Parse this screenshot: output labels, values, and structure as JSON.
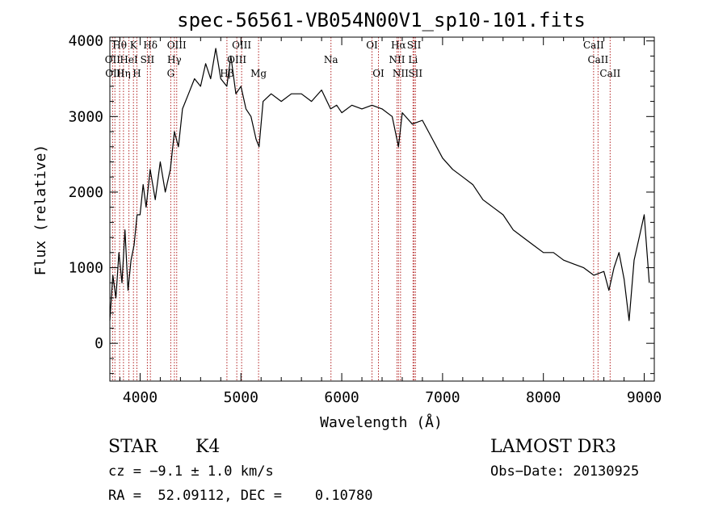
{
  "chart_data": {
    "type": "line",
    "title": "spec-56561-VB054N00V1_sp10-101.fits",
    "xlabel": "Wavelength (Å)",
    "ylabel": "Flux (relative)",
    "xlim": [
      3700,
      9100
    ],
    "ylim": [
      -500,
      4050
    ],
    "xticks": [
      {
        "value": 4000,
        "label": "4000"
      },
      {
        "value": 5000,
        "label": "5000"
      },
      {
        "value": 6000,
        "label": "6000"
      },
      {
        "value": 7000,
        "label": "7000"
      },
      {
        "value": 8000,
        "label": "8000"
      },
      {
        "value": 9000,
        "label": "9000"
      }
    ],
    "yticks": [
      {
        "value": 0,
        "label": "0"
      },
      {
        "value": 1000,
        "label": "1000"
      },
      {
        "value": 2000,
        "label": "2000"
      },
      {
        "value": 3000,
        "label": "3000"
      },
      {
        "value": 4000,
        "label": "4000"
      }
    ],
    "spectrum": {
      "name": "flux",
      "x": [
        3700,
        3730,
        3760,
        3790,
        3820,
        3850,
        3880,
        3910,
        3940,
        3970,
        4000,
        4030,
        4060,
        4100,
        4150,
        4200,
        4250,
        4300,
        4340,
        4380,
        4420,
        4480,
        4540,
        4600,
        4650,
        4700,
        4750,
        4800,
        4860,
        4900,
        4950,
        5000,
        5050,
        5100,
        5150,
        5180,
        5220,
        5300,
        5400,
        5500,
        5600,
        5700,
        5800,
        5890,
        5950,
        6000,
        6100,
        6200,
        6300,
        6400,
        6500,
        6563,
        6600,
        6700,
        6800,
        6900,
        7000,
        7100,
        7200,
        7300,
        7400,
        7500,
        7600,
        7700,
        7800,
        7900,
        8000,
        8100,
        8200,
        8300,
        8400,
        8500,
        8600,
        8650,
        8700,
        8750,
        8800,
        8850,
        8900,
        8950,
        9000,
        9050
      ],
      "y": [
        300,
        900,
        600,
        1200,
        800,
        1500,
        700,
        1100,
        1300,
        1700,
        1700,
        2100,
        1800,
        2300,
        1900,
        2400,
        2000,
        2300,
        2800,
        2600,
        3100,
        3300,
        3500,
        3400,
        3700,
        3500,
        3900,
        3500,
        3400,
        3800,
        3300,
        3400,
        3100,
        3000,
        2700,
        2600,
        3200,
        3300,
        3200,
        3300,
        3300,
        3200,
        3350,
        3100,
        3150,
        3050,
        3150,
        3100,
        3150,
        3100,
        3000,
        2600,
        3050,
        2900,
        2950,
        2700,
        2450,
        2300,
        2200,
        2100,
        1900,
        1800,
        1700,
        1500,
        1400,
        1300,
        1200,
        1200,
        1100,
        1050,
        1000,
        900,
        950,
        700,
        1000,
        1200,
        850,
        300,
        1100,
        1400,
        1700,
        800
      ]
    },
    "lines": [
      {
        "label": "Hθ",
        "wavelength": 3797,
        "row": 0
      },
      {
        "label": "K",
        "wavelength": 3934,
        "row": 0
      },
      {
        "label": "Hδ",
        "wavelength": 4102,
        "row": 0
      },
      {
        "label": "OIII",
        "wavelength": 4363,
        "row": 0
      },
      {
        "label": "OIII",
        "wavelength": 5007,
        "row": 0
      },
      {
        "label": "OI",
        "wavelength": 6300,
        "row": 0
      },
      {
        "label": "Hα",
        "wavelength": 6563,
        "row": 0
      },
      {
        "label": "SII",
        "wavelength": 6717,
        "row": 0
      },
      {
        "label": "CaII",
        "wavelength": 8498,
        "row": 0
      },
      {
        "label": "OII",
        "wavelength": 3727,
        "row": 1
      },
      {
        "label": "HeI",
        "wavelength": 3889,
        "row": 1
      },
      {
        "label": "SII",
        "wavelength": 4072,
        "row": 1
      },
      {
        "label": "Hγ",
        "wavelength": 4340,
        "row": 1
      },
      {
        "label": "OIII",
        "wavelength": 4959,
        "row": 1
      },
      {
        "label": "Na",
        "wavelength": 5893,
        "row": 1
      },
      {
        "label": "NII",
        "wavelength": 6548,
        "row": 1
      },
      {
        "label": "Li",
        "wavelength": 6707,
        "row": 1
      },
      {
        "label": "CaII",
        "wavelength": 8542,
        "row": 1
      },
      {
        "label": "OIII",
        "wavelength": 3750,
        "row": 2
      },
      {
        "label": "Hη",
        "wavelength": 3835,
        "row": 2
      },
      {
        "label": "H",
        "wavelength": 3968,
        "row": 2
      },
      {
        "label": "G",
        "wavelength": 4304,
        "row": 2
      },
      {
        "label": "Hβ",
        "wavelength": 4861,
        "row": 2
      },
      {
        "label": "Mg",
        "wavelength": 5175,
        "row": 2
      },
      {
        "label": "OI",
        "wavelength": 6364,
        "row": 2
      },
      {
        "label": "NII",
        "wavelength": 6583,
        "row": 2
      },
      {
        "label": "SII",
        "wavelength": 6731,
        "row": 2
      },
      {
        "label": "CaII",
        "wavelength": 8662,
        "row": 2
      }
    ]
  },
  "info": {
    "object_type": "STAR",
    "subclass": "K4",
    "survey": "LAMOST DR3",
    "cz": "cz = −9.1 ± 1.0 km/s",
    "obs_date": "Obs−Date: 20130925",
    "coords": "RA =  52.09112, DEC =    0.10780"
  },
  "colors": {
    "line_marker": "#b22222",
    "spectrum": "#000000"
  }
}
